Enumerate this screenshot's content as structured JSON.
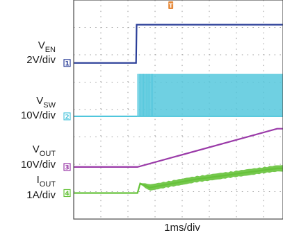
{
  "chart_data": {
    "type": "line",
    "title": "",
    "xlabel": "1ms/div",
    "x_divisions": 10,
    "y_divisions": 8,
    "grid": true,
    "background": "#ffffff",
    "series": [
      {
        "name": "EN",
        "label_main": "V",
        "label_sub": "EN",
        "scale": "2V/div",
        "channel": "1",
        "color": "#2a3e98",
        "marker_div": 5.7,
        "x": [
          0,
          2.3,
          2.32,
          10
        ],
        "y": [
          5.7,
          5.7,
          7.1,
          7.1
        ]
      },
      {
        "name": "SW",
        "label_main": "V",
        "label_sub": "SW",
        "scale": "10V/div",
        "channel": "2",
        "color": "#4fc6dc",
        "marker_div": 3.75,
        "base_div": 3.75,
        "switch_start": 2.35,
        "high_div": 5.3
      },
      {
        "name": "OUT",
        "label_main": "V",
        "label_sub": "OUT",
        "scale": "10V/div",
        "channel": "3",
        "color": "#9a3aa8",
        "marker_div": 1.9,
        "x": [
          0,
          2.35,
          7.5,
          10
        ],
        "y": [
          1.9,
          1.9,
          3.3,
          3.3
        ]
      },
      {
        "name": "IOUT",
        "label_main": "I",
        "label_sub": "OUT",
        "scale": "1A/div",
        "channel": "4",
        "color": "#66c23a",
        "marker_div": 0.95,
        "x": [
          0,
          2.35,
          2.45,
          2.8,
          4.5,
          6.0,
          7.5,
          10
        ],
        "y": [
          0.95,
          0.95,
          1.3,
          1.15,
          1.45,
          1.65,
          1.85,
          1.85
        ],
        "ripple": 0.25
      }
    ],
    "trigger_marker": {
      "label": "T",
      "color": "#e6893a",
      "position_div": 3.58
    }
  }
}
